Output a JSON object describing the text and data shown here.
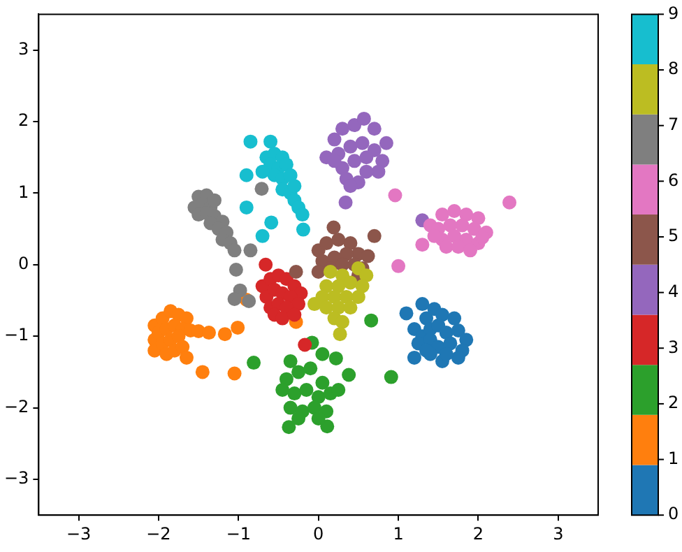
{
  "chart_data": {
    "type": "scatter",
    "xlim": [
      -3.5,
      3.5
    ],
    "ylim": [
      -3.5,
      3.5
    ],
    "xticks": [
      -3,
      -2,
      -1,
      0,
      1,
      2,
      3
    ],
    "yticks": [
      -3,
      -2,
      -1,
      0,
      1,
      2,
      3
    ],
    "grid": false,
    "legend": false,
    "marker": "circle",
    "clim": [
      0,
      9
    ],
    "cticks": [
      0,
      1,
      2,
      3,
      4,
      5,
      6,
      7,
      8,
      9
    ],
    "series": [
      {
        "x": [
          1.1,
          1.3,
          1.35,
          1.45,
          1.55,
          1.7,
          1.2,
          1.3,
          1.4,
          1.5,
          1.6,
          1.75,
          1.85,
          1.25,
          1.4,
          1.5,
          1.65,
          1.8,
          1.2,
          1.4,
          1.55,
          1.75,
          1.6,
          1.35,
          -2.05,
          -1.95,
          -1.85,
          -1.75,
          -1.65,
          -2.05,
          -2.0,
          -1.9,
          -1.8,
          -1.7,
          -1.6,
          -2.05,
          -1.95,
          -1.85,
          -1.75,
          -1.9,
          -1.8,
          -1.7,
          -1.65,
          -1.5,
          -1.37,
          -1.17,
          -1.01,
          -1.45,
          -1.05,
          -0.28,
          -0.9,
          -0.81,
          0.66,
          0.91,
          0.38,
          -0.08,
          0.22,
          -0.37,
          0.11,
          -0.35,
          0.05,
          -0.4,
          -0.25,
          -0.1,
          0.05,
          -0.45,
          -0.3,
          -0.15,
          0.0,
          0.15,
          -0.35,
          -0.2,
          -0.05,
          0.1,
          -0.25,
          0.0,
          0.25,
          -0.66,
          -0.17,
          -0.7,
          -0.6,
          -0.5,
          -0.4,
          -0.3,
          -0.22,
          -0.65,
          -0.55,
          -0.45,
          -0.35,
          -0.25,
          -0.6,
          -0.5,
          -0.4,
          -0.55,
          -0.45,
          -0.3,
          0.1,
          0.2,
          0.3,
          0.45,
          0.57,
          0.7,
          0.85,
          0.25,
          0.4,
          0.55,
          0.7,
          0.8,
          0.3,
          0.45,
          0.6,
          0.75,
          0.35,
          0.5,
          0.6,
          0.4,
          0.34,
          1.3,
          0.2,
          0.19,
          0.7,
          -0.28,
          0.0,
          0.1,
          0.25,
          0.4,
          0.5,
          0.05,
          0.2,
          0.35,
          0.45,
          0.0,
          0.15,
          0.3,
          0.5,
          0.62,
          0.55,
          2.39,
          0.96,
          1.0,
          1.3,
          1.4,
          1.55,
          1.7,
          1.85,
          2.0,
          1.5,
          1.65,
          1.8,
          1.95,
          2.1,
          1.55,
          1.7,
          1.85,
          2.0,
          1.6,
          1.75,
          1.9,
          2.05,
          1.45,
          -1.5,
          -1.4,
          -1.55,
          -1.45,
          -1.35,
          -1.3,
          -1.5,
          -1.4,
          -1.3,
          -1.2,
          -1.35,
          -1.25,
          -1.15,
          -1.2,
          -1.1,
          -1.05,
          -0.85,
          -1.03,
          -0.98,
          -1.05,
          -0.87,
          -0.71,
          0.15,
          0.3,
          0.5,
          0.6,
          0.1,
          0.25,
          0.4,
          0.55,
          0.05,
          0.2,
          0.35,
          0.5,
          0.1,
          0.25,
          0.4,
          0.2,
          0.3,
          0.27,
          -0.05,
          -0.85,
          -0.6,
          -0.9,
          -0.9,
          -0.7,
          -0.19,
          -0.59,
          -0.65,
          -0.55,
          -0.45,
          -0.6,
          -0.5,
          -0.4,
          -0.55,
          -0.45,
          -0.35,
          -0.45,
          -0.35,
          -0.3,
          -0.25,
          -0.2,
          -0.7,
          -0.3
        ],
        "values": [
          -0.68,
          -0.55,
          -0.75,
          -0.62,
          -0.7,
          -0.75,
          -0.9,
          -1.0,
          -0.9,
          -0.85,
          -0.95,
          -0.92,
          -1.05,
          -1.1,
          -1.05,
          -1.15,
          -1.1,
          -1.2,
          -1.3,
          -1.25,
          -1.35,
          -1.3,
          -1.25,
          -1.2,
          -0.85,
          -0.75,
          -0.65,
          -0.7,
          -0.75,
          -1.05,
          -0.95,
          -0.9,
          -0.85,
          -0.9,
          -0.92,
          -1.2,
          -1.1,
          -1.05,
          -1.0,
          -1.25,
          -1.2,
          -1.15,
          -1.3,
          -0.93,
          -0.95,
          -0.97,
          -0.88,
          -1.5,
          -1.52,
          -0.8,
          -0.49,
          -1.37,
          -0.78,
          -1.57,
          -1.54,
          -1.09,
          -1.31,
          -2.27,
          -2.26,
          -1.35,
          -1.25,
          -1.6,
          -1.5,
          -1.45,
          -1.65,
          -1.75,
          -1.8,
          -1.75,
          -1.85,
          -1.8,
          -2.0,
          -2.05,
          -2.0,
          -2.05,
          -2.15,
          -2.15,
          -1.75,
          0.0,
          -1.12,
          -0.3,
          -0.2,
          -0.15,
          -0.2,
          -0.3,
          -0.4,
          -0.45,
          -0.35,
          -0.4,
          -0.45,
          -0.55,
          -0.6,
          -0.55,
          -0.6,
          -0.7,
          -0.75,
          -0.7,
          1.5,
          1.75,
          1.9,
          1.95,
          2.04,
          1.9,
          1.7,
          1.55,
          1.65,
          1.7,
          1.6,
          1.45,
          1.35,
          1.45,
          1.5,
          1.3,
          1.2,
          1.15,
          1.3,
          1.1,
          0.87,
          0.62,
          1.45,
          0.52,
          0.4,
          -0.1,
          0.2,
          0.3,
          0.35,
          0.3,
          0.15,
          0.05,
          0.1,
          0.15,
          0.0,
          -0.1,
          -0.05,
          0.0,
          -0.15,
          0.12,
          -0.05,
          0.87,
          0.97,
          -0.02,
          0.28,
          0.55,
          0.7,
          0.75,
          0.7,
          0.65,
          0.5,
          0.55,
          0.55,
          0.5,
          0.45,
          0.35,
          0.4,
          0.35,
          0.3,
          0.25,
          0.25,
          0.2,
          0.38,
          0.4,
          0.95,
          0.97,
          0.8,
          0.85,
          0.8,
          0.9,
          0.7,
          0.72,
          0.68,
          0.6,
          0.58,
          0.5,
          0.45,
          0.35,
          0.3,
          0.2,
          0.2,
          -0.07,
          -0.36,
          -0.48,
          -0.51,
          1.06,
          -0.1,
          -0.15,
          -0.05,
          -0.15,
          -0.3,
          -0.3,
          -0.25,
          -0.3,
          -0.45,
          -0.45,
          -0.45,
          -0.45,
          -0.6,
          -0.6,
          -0.6,
          -0.75,
          -0.8,
          -0.97,
          -0.55,
          1.72,
          1.72,
          1.25,
          0.8,
          0.4,
          0.49,
          0.59,
          1.5,
          1.55,
          1.5,
          1.4,
          1.35,
          1.4,
          1.25,
          1.2,
          1.25,
          1.05,
          1.0,
          0.9,
          0.8,
          0.7,
          1.3,
          1.1
        ],
        "cvalues": [
          0,
          0,
          0,
          0,
          0,
          0,
          0,
          0,
          0,
          0,
          0,
          0,
          0,
          0,
          0,
          0,
          0,
          0,
          0,
          0,
          0,
          0,
          0,
          0,
          1,
          1,
          1,
          1,
          1,
          1,
          1,
          1,
          1,
          1,
          1,
          1,
          1,
          1,
          1,
          1,
          1,
          1,
          1,
          1,
          1,
          1,
          1,
          1,
          1,
          1,
          1,
          2,
          2,
          2,
          2,
          2,
          2,
          2,
          2,
          2,
          2,
          2,
          2,
          2,
          2,
          2,
          2,
          2,
          2,
          2,
          2,
          2,
          2,
          2,
          2,
          2,
          2,
          3,
          3,
          3,
          3,
          3,
          3,
          3,
          3,
          3,
          3,
          3,
          3,
          3,
          3,
          3,
          3,
          3,
          3,
          3,
          4,
          4,
          4,
          4,
          4,
          4,
          4,
          4,
          4,
          4,
          4,
          4,
          4,
          4,
          4,
          4,
          4,
          4,
          4,
          4,
          4,
          4,
          4,
          5,
          5,
          5,
          5,
          5,
          5,
          5,
          5,
          5,
          5,
          5,
          5,
          5,
          5,
          5,
          5,
          5,
          5,
          6,
          6,
          6,
          6,
          6,
          6,
          6,
          6,
          6,
          6,
          6,
          6,
          6,
          6,
          6,
          6,
          6,
          6,
          6,
          6,
          6,
          6,
          6,
          7,
          7,
          7,
          7,
          7,
          7,
          7,
          7,
          7,
          7,
          7,
          7,
          7,
          7,
          7,
          7,
          7,
          7,
          7,
          7,
          7,
          7,
          8,
          8,
          8,
          8,
          8,
          8,
          8,
          8,
          8,
          8,
          8,
          8,
          8,
          8,
          8,
          8,
          8,
          8,
          8,
          9,
          9,
          9,
          9,
          9,
          9,
          9,
          9,
          9,
          9,
          9,
          9,
          9,
          9,
          9,
          9,
          9,
          9,
          9,
          9,
          9,
          9,
          9
        ]
      }
    ]
  }
}
